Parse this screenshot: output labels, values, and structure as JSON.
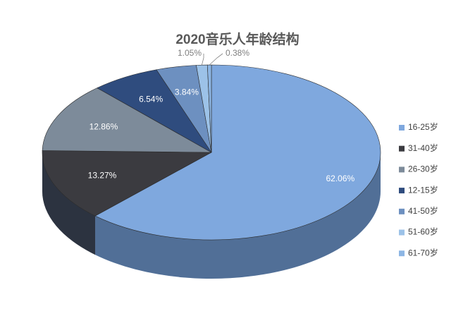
{
  "chart_data": {
    "type": "pie",
    "title": "2020音乐人年龄结构",
    "categories": [
      "16-25岁",
      "31-40岁",
      "26-30岁",
      "12-15岁",
      "41-50岁",
      "51-60岁",
      "61-70岁"
    ],
    "values": [
      62.06,
      13.27,
      12.86,
      6.54,
      3.84,
      1.05,
      0.38
    ],
    "value_labels": [
      "62.06%",
      "13.27%",
      "12.86%",
      "6.54%",
      "3.84%",
      "1.05%",
      "0.38%"
    ],
    "colors": [
      "#7fa8de",
      "#3b3b40",
      "#7d8b9a",
      "#2f4c7e",
      "#6d90c0",
      "#9cc2e8",
      "#8db6e4"
    ],
    "legend": "right"
  }
}
